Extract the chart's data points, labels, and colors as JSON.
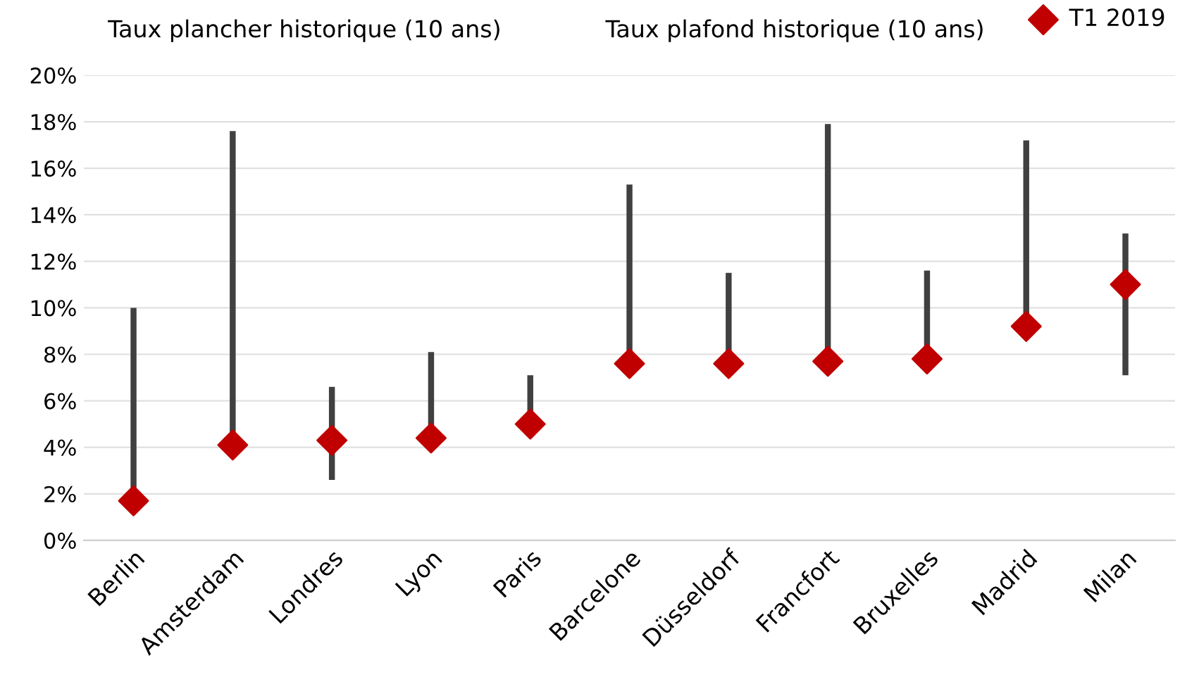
{
  "chart_data": {
    "type": "bar",
    "categories": [
      "Berlin",
      "Amsterdam",
      "Londres",
      "Lyon",
      "Paris",
      "Barcelone",
      "Düsseldorf",
      "Francfort",
      "Bruxelles",
      "Madrid",
      "Milan"
    ],
    "series": [
      {
        "color": "#404040",
        "base": [
          1.6,
          4.0,
          2.6,
          4.4,
          5.0,
          7.6,
          7.6,
          7.7,
          7.8,
          9.2,
          7.1
        ],
        "values": [
          8.4,
          13.6,
          4.0,
          3.7,
          2.1,
          7.7,
          3.9,
          10.2,
          3.8,
          8.0,
          6.1
        ]
      },
      {
        "type": "scatter",
        "name": "T1 2019",
        "color": "#c00000",
        "marker": "diamond",
        "values": [
          1.7,
          4.1,
          4.3,
          4.4,
          5.0,
          7.6,
          7.6,
          7.7,
          7.8,
          9.2,
          11.0
        ]
      }
    ],
    "annotations": [
      "Taux plancher historique (10 ans)",
      "Taux plafond historique (10 ans)"
    ],
    "ylim": [
      0,
      20
    ],
    "yticks": [
      {
        "value": 0,
        "label": "0%"
      },
      {
        "value": 2,
        "label": "2%"
      },
      {
        "value": 4,
        "label": "4%"
      },
      {
        "value": 6,
        "label": "6%"
      },
      {
        "value": 8,
        "label": "8%"
      },
      {
        "value": 10,
        "label": "10%"
      },
      {
        "value": 12,
        "label": "12%"
      },
      {
        "value": 14,
        "label": "14%"
      },
      {
        "value": 16,
        "label": "16%"
      },
      {
        "value": 18,
        "label": "18%"
      },
      {
        "value": 20,
        "label": "20%"
      }
    ],
    "grid": "y",
    "legend": "top right"
  }
}
